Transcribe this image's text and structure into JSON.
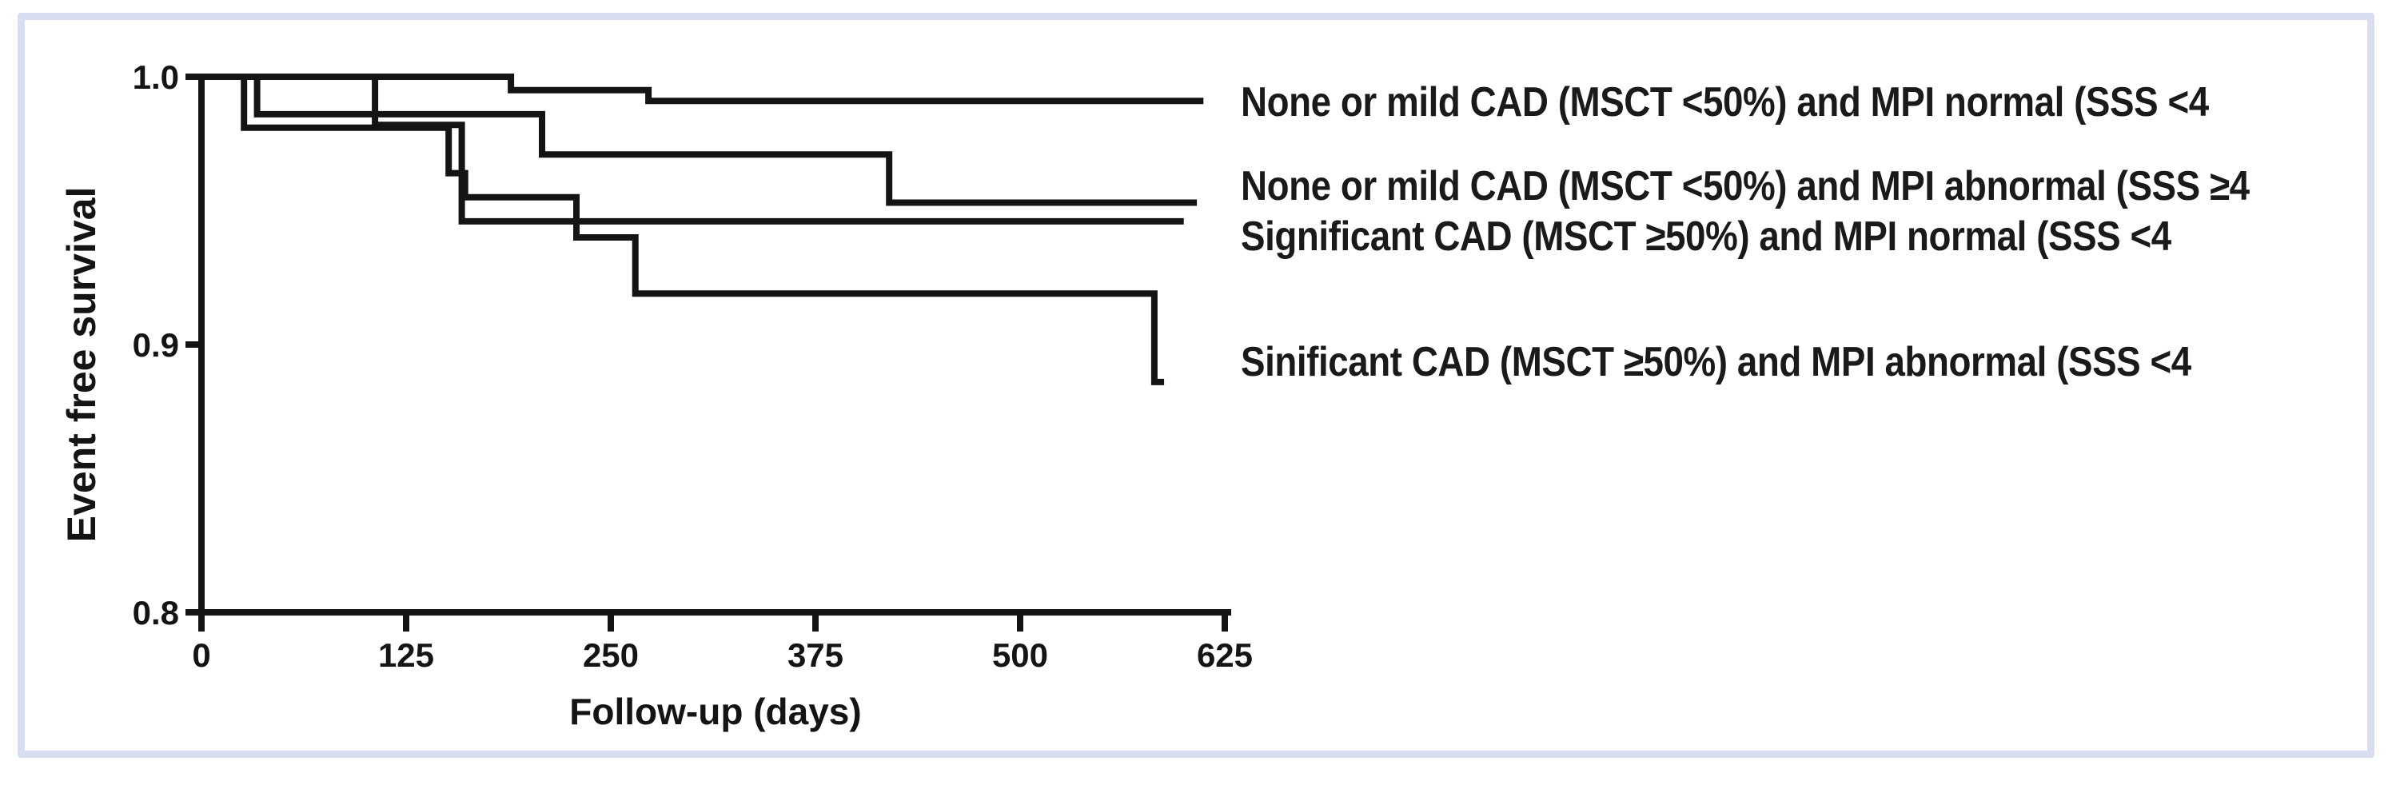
{
  "frame": {
    "background_color": "#ffffff",
    "border_color": "#d8ddf1"
  },
  "chart_data": {
    "type": "line",
    "subtype": "kaplan-meier-step-plot",
    "title": "",
    "xlabel": "Follow-up (days)",
    "ylabel": "Event free survival",
    "xlim": [
      0,
      629
    ],
    "ylim": [
      0.8,
      1.005
    ],
    "xticks": [
      0,
      125,
      250,
      375,
      500,
      625
    ],
    "xtick_labels": [
      "0",
      "125",
      "250",
      "375",
      "500",
      "625"
    ],
    "yticks": [
      1.0,
      0.9,
      0.8
    ],
    "ytick_labels": [
      "1.0",
      "0.9",
      "0.8"
    ],
    "grid": false,
    "line_color": "#141414",
    "legend_position": "right-outside",
    "series": [
      {
        "name": "None or mild CAD (MSCT <50%) and MPI normal (SSS <4",
        "start_value": 1.0,
        "end_day": 610,
        "steps": [
          {
            "day": 189,
            "value": 0.995
          },
          {
            "day": 273,
            "value": 0.991
          }
        ]
      },
      {
        "name": "None or mild CAD (MSCT <50%) and MPI abnormal (SSS ≥4",
        "start_value": 1.0,
        "end_day": 606,
        "steps": [
          {
            "day": 34,
            "value": 0.986
          },
          {
            "day": 208,
            "value": 0.971
          },
          {
            "day": 420,
            "value": 0.953
          }
        ]
      },
      {
        "name": "Significant  CAD (MSCT ≥50%) and MPI normal (SSS <4",
        "start_value": 1.0,
        "end_day": 598,
        "steps": [
          {
            "day": 106,
            "value": 0.982
          },
          {
            "day": 159,
            "value": 0.946
          }
        ]
      },
      {
        "name": "Sinificant CAD (MSCT ≥50%) and MPI abnormal (SSS <4",
        "start_value": 1.0,
        "end_day": 586,
        "steps": [
          {
            "day": 26,
            "value": 0.981
          },
          {
            "day": 151,
            "value": 0.964
          },
          {
            "day": 161,
            "value": 0.955
          },
          {
            "day": 229,
            "value": 0.94
          },
          {
            "day": 265,
            "value": 0.919
          },
          {
            "day": 582,
            "value": 0.886
          }
        ]
      }
    ]
  }
}
